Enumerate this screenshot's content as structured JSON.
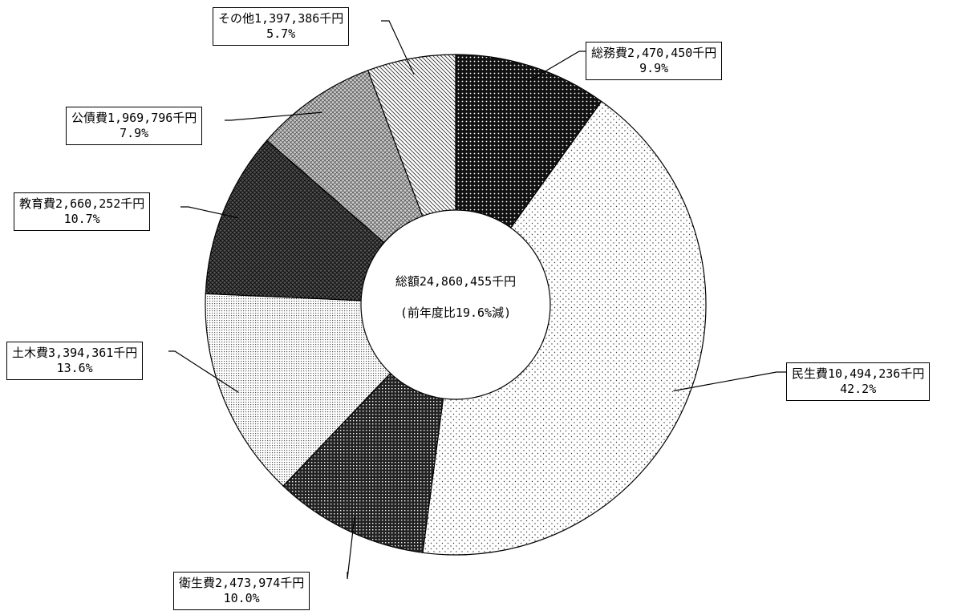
{
  "chart_data": {
    "type": "pie",
    "donut": true,
    "center_total": "総額24,860,455千円",
    "center_change": "(前年度比19.6%減)",
    "slices": [
      {
        "key": "soumu",
        "name": "総務費",
        "amount": "2,470,450千円",
        "value": 9.9,
        "percent_label": "9.9%",
        "fill": "dots-dark"
      },
      {
        "key": "minsei",
        "name": "民生費",
        "amount": "10,494,236千円",
        "value": 42.2,
        "percent_label": "42.2%",
        "fill": "dots-light"
      },
      {
        "key": "eisei",
        "name": "衛生費",
        "amount": "2,473,974千円",
        "value": 10.0,
        "percent_label": "10.0%",
        "fill": "grid-dark"
      },
      {
        "key": "doboku",
        "name": "土木費",
        "amount": "3,394,361千円",
        "value": 13.6,
        "percent_label": "13.6%",
        "fill": "fine-dots"
      },
      {
        "key": "kyouiku",
        "name": "教育費",
        "amount": "2,660,252千円",
        "value": 10.7,
        "percent_label": "10.7%",
        "fill": "crosshatch-dark"
      },
      {
        "key": "kousai",
        "name": "公債費",
        "amount": "1,969,796千円",
        "value": 7.9,
        "percent_label": "7.9%",
        "fill": "crosshatch-light"
      },
      {
        "key": "sonota",
        "name": "その他",
        "amount": "1,397,386千円",
        "value": 5.7,
        "percent_label": "5.7%",
        "fill": "diagonal"
      }
    ]
  }
}
